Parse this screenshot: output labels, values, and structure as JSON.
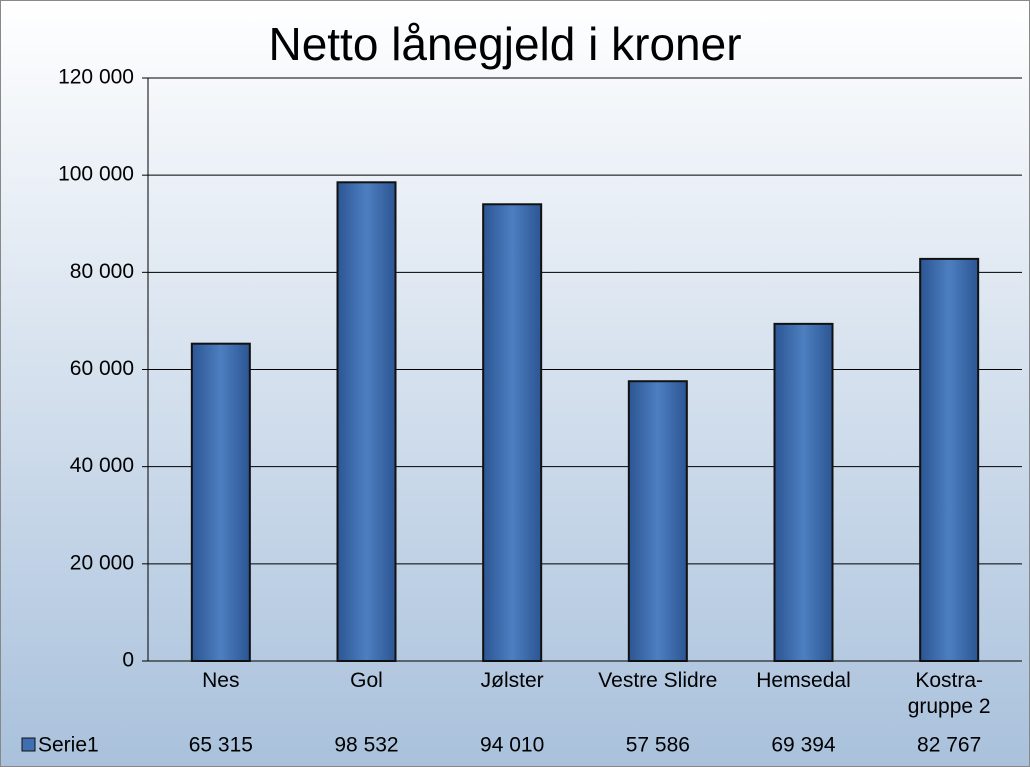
{
  "chart_data": {
    "type": "bar",
    "title": "Netto lånegjeld i kroner",
    "categories": [
      "Nes",
      "Gol",
      "Jølster",
      "Vestre Slidre",
      "Hemsedal",
      "Kostra-gruppe 2"
    ],
    "series": [
      {
        "name": "Serie1",
        "color": "#3f6fb0",
        "values": [
          65315,
          98532,
          94010,
          57586,
          69394,
          82767
        ],
        "value_labels": [
          "65 315",
          "98 532",
          "94 010",
          "57 586",
          "69 394",
          "82 767"
        ]
      }
    ],
    "ylim": [
      0,
      120000
    ],
    "yticks": [
      0,
      {
        "value": 20000,
        "label": "20 000"
      },
      {
        "value": 40000,
        "label": "40 000"
      },
      {
        "value": 60000,
        "label": "60 000"
      },
      {
        "value": 80000,
        "label": "80 000"
      },
      {
        "value": 100000,
        "label": "100 000"
      },
      {
        "value": 120000,
        "label": "120 000"
      }
    ],
    "grid": true
  }
}
